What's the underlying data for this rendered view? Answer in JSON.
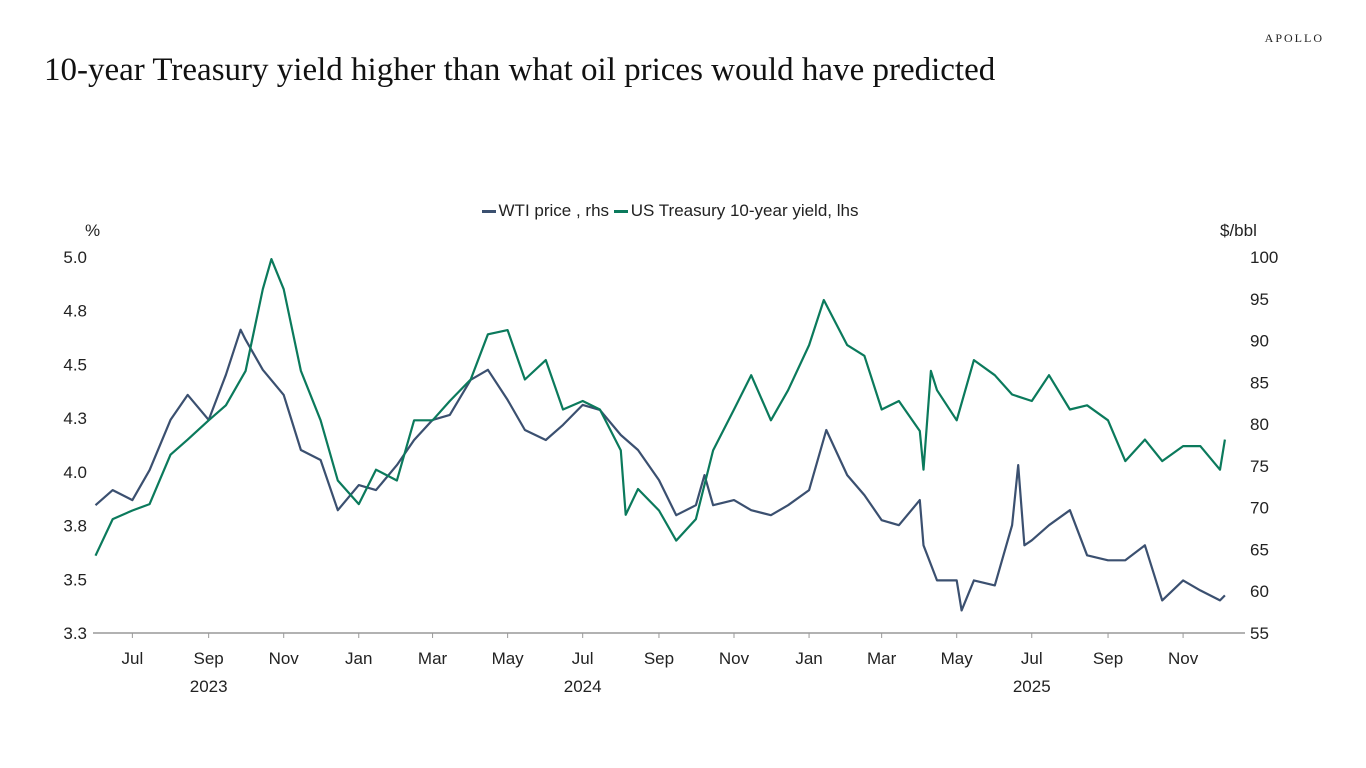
{
  "header": {
    "title": "10-year Treasury yield higher than what oil prices would have predicted",
    "logo": "APOLLO"
  },
  "chart_data": {
    "type": "line",
    "title": "10-year Treasury yield higher than what oil prices would have predicted",
    "legend_placement": "top-center",
    "left_axis": {
      "unit": "%",
      "ylim": [
        3.25,
        5.0
      ],
      "ticks": [
        3.25,
        3.5,
        3.75,
        4.0,
        4.25,
        4.5,
        4.75,
        5.0
      ],
      "tick_labels": [
        "3.3",
        "3.5",
        "3.8",
        "4.0",
        "4.3",
        "4.5",
        "4.8",
        "5.0"
      ]
    },
    "right_axis": {
      "unit": "$/bbl",
      "ylim": [
        55,
        100
      ],
      "ticks": [
        55,
        60,
        65,
        70,
        75,
        80,
        85,
        90,
        95,
        100
      ],
      "tick_labels": [
        "55",
        "60",
        "65",
        "70",
        "75",
        "80",
        "85",
        "90",
        "95",
        "100"
      ]
    },
    "x_axis": {
      "range": [
        "2023-05-30",
        "2025-12-01"
      ],
      "ticks": [
        {
          "date": "2023-07-01",
          "label": "Jul"
        },
        {
          "date": "2023-09-01",
          "label": "Sep"
        },
        {
          "date": "2023-11-01",
          "label": "Nov"
        },
        {
          "date": "2024-01-01",
          "label": "Jan"
        },
        {
          "date": "2024-03-01",
          "label": "Mar"
        },
        {
          "date": "2024-05-01",
          "label": "May"
        },
        {
          "date": "2024-07-01",
          "label": "Jul"
        },
        {
          "date": "2024-09-01",
          "label": "Sep"
        },
        {
          "date": "2024-11-01",
          "label": "Nov"
        },
        {
          "date": "2025-01-01",
          "label": "Jan"
        },
        {
          "date": "2025-03-01",
          "label": "Mar"
        },
        {
          "date": "2025-05-01",
          "label": "May"
        },
        {
          "date": "2025-07-01",
          "label": "Jul"
        },
        {
          "date": "2025-09-01",
          "label": "Sep"
        },
        {
          "date": "2025-11-01",
          "label": "Nov"
        }
      ],
      "year_labels": [
        {
          "date": "2023-09-01",
          "label": "2023"
        },
        {
          "date": "2024-07-01",
          "label": "2024"
        },
        {
          "date": "2025-07-01",
          "label": "2025"
        }
      ]
    },
    "grid": false,
    "series": [
      {
        "name": "WTI price , rhs",
        "axis": "right",
        "color": "#3b5070",
        "points": [
          [
            "2023-06-01",
            70.3
          ],
          [
            "2023-06-15",
            72.1
          ],
          [
            "2023-07-01",
            70.9
          ],
          [
            "2023-07-15",
            74.5
          ],
          [
            "2023-08-01",
            80.5
          ],
          [
            "2023-08-15",
            83.5
          ],
          [
            "2023-09-01",
            80.5
          ],
          [
            "2023-09-15",
            85.9
          ],
          [
            "2023-09-27",
            91.3
          ],
          [
            "2023-10-01",
            90.1
          ],
          [
            "2023-10-15",
            86.5
          ],
          [
            "2023-11-01",
            83.5
          ],
          [
            "2023-11-15",
            76.9
          ],
          [
            "2023-12-01",
            75.7
          ],
          [
            "2023-12-15",
            69.7
          ],
          [
            "2024-01-01",
            72.7
          ],
          [
            "2024-01-15",
            72.1
          ],
          [
            "2024-02-01",
            75.1
          ],
          [
            "2024-02-15",
            78.1
          ],
          [
            "2024-03-01",
            80.5
          ],
          [
            "2024-03-15",
            81.1
          ],
          [
            "2024-04-01",
            85.3
          ],
          [
            "2024-04-15",
            86.5
          ],
          [
            "2024-05-01",
            82.9
          ],
          [
            "2024-05-15",
            79.3
          ],
          [
            "2024-06-01",
            78.1
          ],
          [
            "2024-06-15",
            79.9
          ],
          [
            "2024-07-01",
            82.3
          ],
          [
            "2024-07-15",
            81.7
          ],
          [
            "2024-08-01",
            78.7
          ],
          [
            "2024-08-15",
            76.9
          ],
          [
            "2024-09-01",
            73.3
          ],
          [
            "2024-09-15",
            69.1
          ],
          [
            "2024-10-01",
            70.3
          ],
          [
            "2024-10-08",
            73.9
          ],
          [
            "2024-10-15",
            70.3
          ],
          [
            "2024-11-01",
            70.9
          ],
          [
            "2024-11-15",
            69.7
          ],
          [
            "2024-12-01",
            69.1
          ],
          [
            "2024-12-15",
            70.3
          ],
          [
            "2025-01-01",
            72.1
          ],
          [
            "2025-01-15",
            79.3
          ],
          [
            "2025-02-01",
            73.9
          ],
          [
            "2025-02-15",
            71.5
          ],
          [
            "2025-03-01",
            68.5
          ],
          [
            "2025-03-15",
            67.9
          ],
          [
            "2025-04-01",
            70.9
          ],
          [
            "2025-04-04",
            65.5
          ],
          [
            "2025-04-15",
            61.3
          ],
          [
            "2025-05-01",
            61.3
          ],
          [
            "2025-05-05",
            57.7
          ],
          [
            "2025-05-15",
            61.3
          ],
          [
            "2025-06-01",
            60.7
          ],
          [
            "2025-06-15",
            67.9
          ],
          [
            "2025-06-20",
            75.1
          ],
          [
            "2025-06-25",
            65.5
          ],
          [
            "2025-07-01",
            66.1
          ],
          [
            "2025-07-15",
            67.9
          ],
          [
            "2025-08-01",
            69.7
          ],
          [
            "2025-08-15",
            64.3
          ],
          [
            "2025-09-01",
            63.7
          ],
          [
            "2025-09-15",
            63.7
          ],
          [
            "2025-10-01",
            65.5
          ],
          [
            "2025-10-15",
            58.9
          ],
          [
            "2025-11-01",
            61.3
          ],
          [
            "2025-11-15",
            60.1
          ],
          [
            "2025-12-01",
            58.9
          ],
          [
            "2025-12-05",
            59.5
          ]
        ]
      },
      {
        "name": "US Treasury 10-year yield, lhs",
        "axis": "left",
        "color": "#0b7a5c",
        "points": [
          [
            "2023-06-01",
            3.61
          ],
          [
            "2023-06-15",
            3.78
          ],
          [
            "2023-07-01",
            3.82
          ],
          [
            "2023-07-15",
            3.85
          ],
          [
            "2023-08-01",
            4.08
          ],
          [
            "2023-08-15",
            4.15
          ],
          [
            "2023-09-01",
            4.24
          ],
          [
            "2023-09-15",
            4.31
          ],
          [
            "2023-10-01",
            4.47
          ],
          [
            "2023-10-15",
            4.85
          ],
          [
            "2023-10-22",
            4.99
          ],
          [
            "2023-11-01",
            4.85
          ],
          [
            "2023-11-15",
            4.47
          ],
          [
            "2023-12-01",
            4.24
          ],
          [
            "2023-12-15",
            3.96
          ],
          [
            "2024-01-01",
            3.85
          ],
          [
            "2024-01-15",
            4.01
          ],
          [
            "2024-02-01",
            3.96
          ],
          [
            "2024-02-15",
            4.24
          ],
          [
            "2024-03-01",
            4.24
          ],
          [
            "2024-03-15",
            4.33
          ],
          [
            "2024-04-01",
            4.43
          ],
          [
            "2024-04-15",
            4.64
          ],
          [
            "2024-05-01",
            4.66
          ],
          [
            "2024-05-15",
            4.43
          ],
          [
            "2024-06-01",
            4.52
          ],
          [
            "2024-06-15",
            4.29
          ],
          [
            "2024-07-01",
            4.33
          ],
          [
            "2024-07-15",
            4.29
          ],
          [
            "2024-08-01",
            4.1
          ],
          [
            "2024-08-05",
            3.8
          ],
          [
            "2024-08-15",
            3.92
          ],
          [
            "2024-09-01",
            3.82
          ],
          [
            "2024-09-15",
            3.68
          ],
          [
            "2024-10-01",
            3.78
          ],
          [
            "2024-10-15",
            4.1
          ],
          [
            "2024-11-01",
            4.29
          ],
          [
            "2024-11-15",
            4.45
          ],
          [
            "2024-12-01",
            4.24
          ],
          [
            "2024-12-15",
            4.38
          ],
          [
            "2025-01-01",
            4.59
          ],
          [
            "2025-01-13",
            4.8
          ],
          [
            "2025-02-01",
            4.59
          ],
          [
            "2025-02-15",
            4.54
          ],
          [
            "2025-03-01",
            4.29
          ],
          [
            "2025-03-15",
            4.33
          ],
          [
            "2025-04-01",
            4.19
          ],
          [
            "2025-04-04",
            4.01
          ],
          [
            "2025-04-10",
            4.47
          ],
          [
            "2025-04-15",
            4.38
          ],
          [
            "2025-05-01",
            4.24
          ],
          [
            "2025-05-15",
            4.52
          ],
          [
            "2025-06-01",
            4.45
          ],
          [
            "2025-06-15",
            4.36
          ],
          [
            "2025-07-01",
            4.33
          ],
          [
            "2025-07-15",
            4.45
          ],
          [
            "2025-08-01",
            4.29
          ],
          [
            "2025-08-15",
            4.31
          ],
          [
            "2025-09-01",
            4.24
          ],
          [
            "2025-09-15",
            4.05
          ],
          [
            "2025-10-01",
            4.15
          ],
          [
            "2025-10-15",
            4.05
          ],
          [
            "2025-11-01",
            4.12
          ],
          [
            "2025-11-15",
            4.12
          ],
          [
            "2025-12-01",
            4.01
          ],
          [
            "2025-12-05",
            4.15
          ]
        ]
      }
    ]
  }
}
